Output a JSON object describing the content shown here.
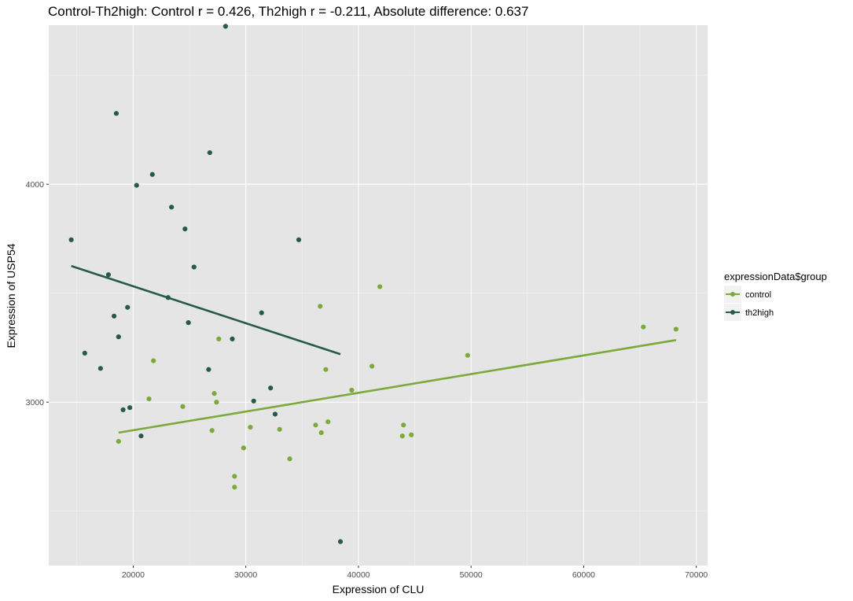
{
  "chart_data": {
    "type": "scatter",
    "title": "Control-Th2high: Control r = 0.426, Th2high r = -0.211, Absolute difference: 0.637",
    "xlabel": "Expression of CLU",
    "ylabel": "Expression of USP54",
    "xlim": [
      12500,
      71000
    ],
    "ylim": [
      2250,
      4730
    ],
    "x_ticks": [
      20000,
      30000,
      40000,
      50000,
      60000,
      70000
    ],
    "x_tick_labels": [
      "20000",
      "30000",
      "40000",
      "50000",
      "60000",
      "70000"
    ],
    "y_ticks": [
      3000,
      4000
    ],
    "y_tick_labels": [
      "3000",
      "4000"
    ],
    "grid": true,
    "legend": {
      "title": "expressionData$group",
      "position": "right"
    },
    "series": [
      {
        "name": "control",
        "color": "#7ba93a",
        "points": [
          [
            18700,
            2820
          ],
          [
            21400,
            3015
          ],
          [
            21800,
            3190
          ],
          [
            24400,
            2980
          ],
          [
            27000,
            2870
          ],
          [
            27200,
            3040
          ],
          [
            27400,
            3000
          ],
          [
            27600,
            3290
          ],
          [
            29000,
            2610
          ],
          [
            29000,
            2660
          ],
          [
            29800,
            2790
          ],
          [
            30400,
            2885
          ],
          [
            33000,
            2875
          ],
          [
            33900,
            2740
          ],
          [
            36200,
            2895
          ],
          [
            36600,
            3440
          ],
          [
            36700,
            2860
          ],
          [
            37100,
            3150
          ],
          [
            37300,
            2910
          ],
          [
            39400,
            3055
          ],
          [
            41200,
            3165
          ],
          [
            41900,
            3530
          ],
          [
            43900,
            2845
          ],
          [
            44000,
            2895
          ],
          [
            44700,
            2850
          ],
          [
            49700,
            3215
          ],
          [
            65300,
            3345
          ],
          [
            68200,
            3335
          ]
        ],
        "trend": [
          [
            18700,
            2860
          ],
          [
            68200,
            3285
          ]
        ]
      },
      {
        "name": "th2high",
        "color": "#275a4b",
        "points": [
          [
            14500,
            3745
          ],
          [
            15700,
            3225
          ],
          [
            17100,
            3155
          ],
          [
            17800,
            3585
          ],
          [
            18300,
            3395
          ],
          [
            18500,
            4325
          ],
          [
            18700,
            3300
          ],
          [
            19100,
            2965
          ],
          [
            19500,
            3435
          ],
          [
            19700,
            2975
          ],
          [
            20300,
            3995
          ],
          [
            20700,
            2845
          ],
          [
            21700,
            4045
          ],
          [
            23100,
            3480
          ],
          [
            23400,
            3895
          ],
          [
            24600,
            3795
          ],
          [
            24900,
            3365
          ],
          [
            25400,
            3620
          ],
          [
            26700,
            3150
          ],
          [
            26800,
            4145
          ],
          [
            28200,
            4725
          ],
          [
            28800,
            3290
          ],
          [
            30700,
            3005
          ],
          [
            31400,
            3410
          ],
          [
            32200,
            3065
          ],
          [
            32600,
            2945
          ],
          [
            34700,
            3745
          ],
          [
            38400,
            2360
          ]
        ],
        "trend": [
          [
            14500,
            3625
          ],
          [
            38400,
            3220
          ]
        ]
      }
    ]
  }
}
